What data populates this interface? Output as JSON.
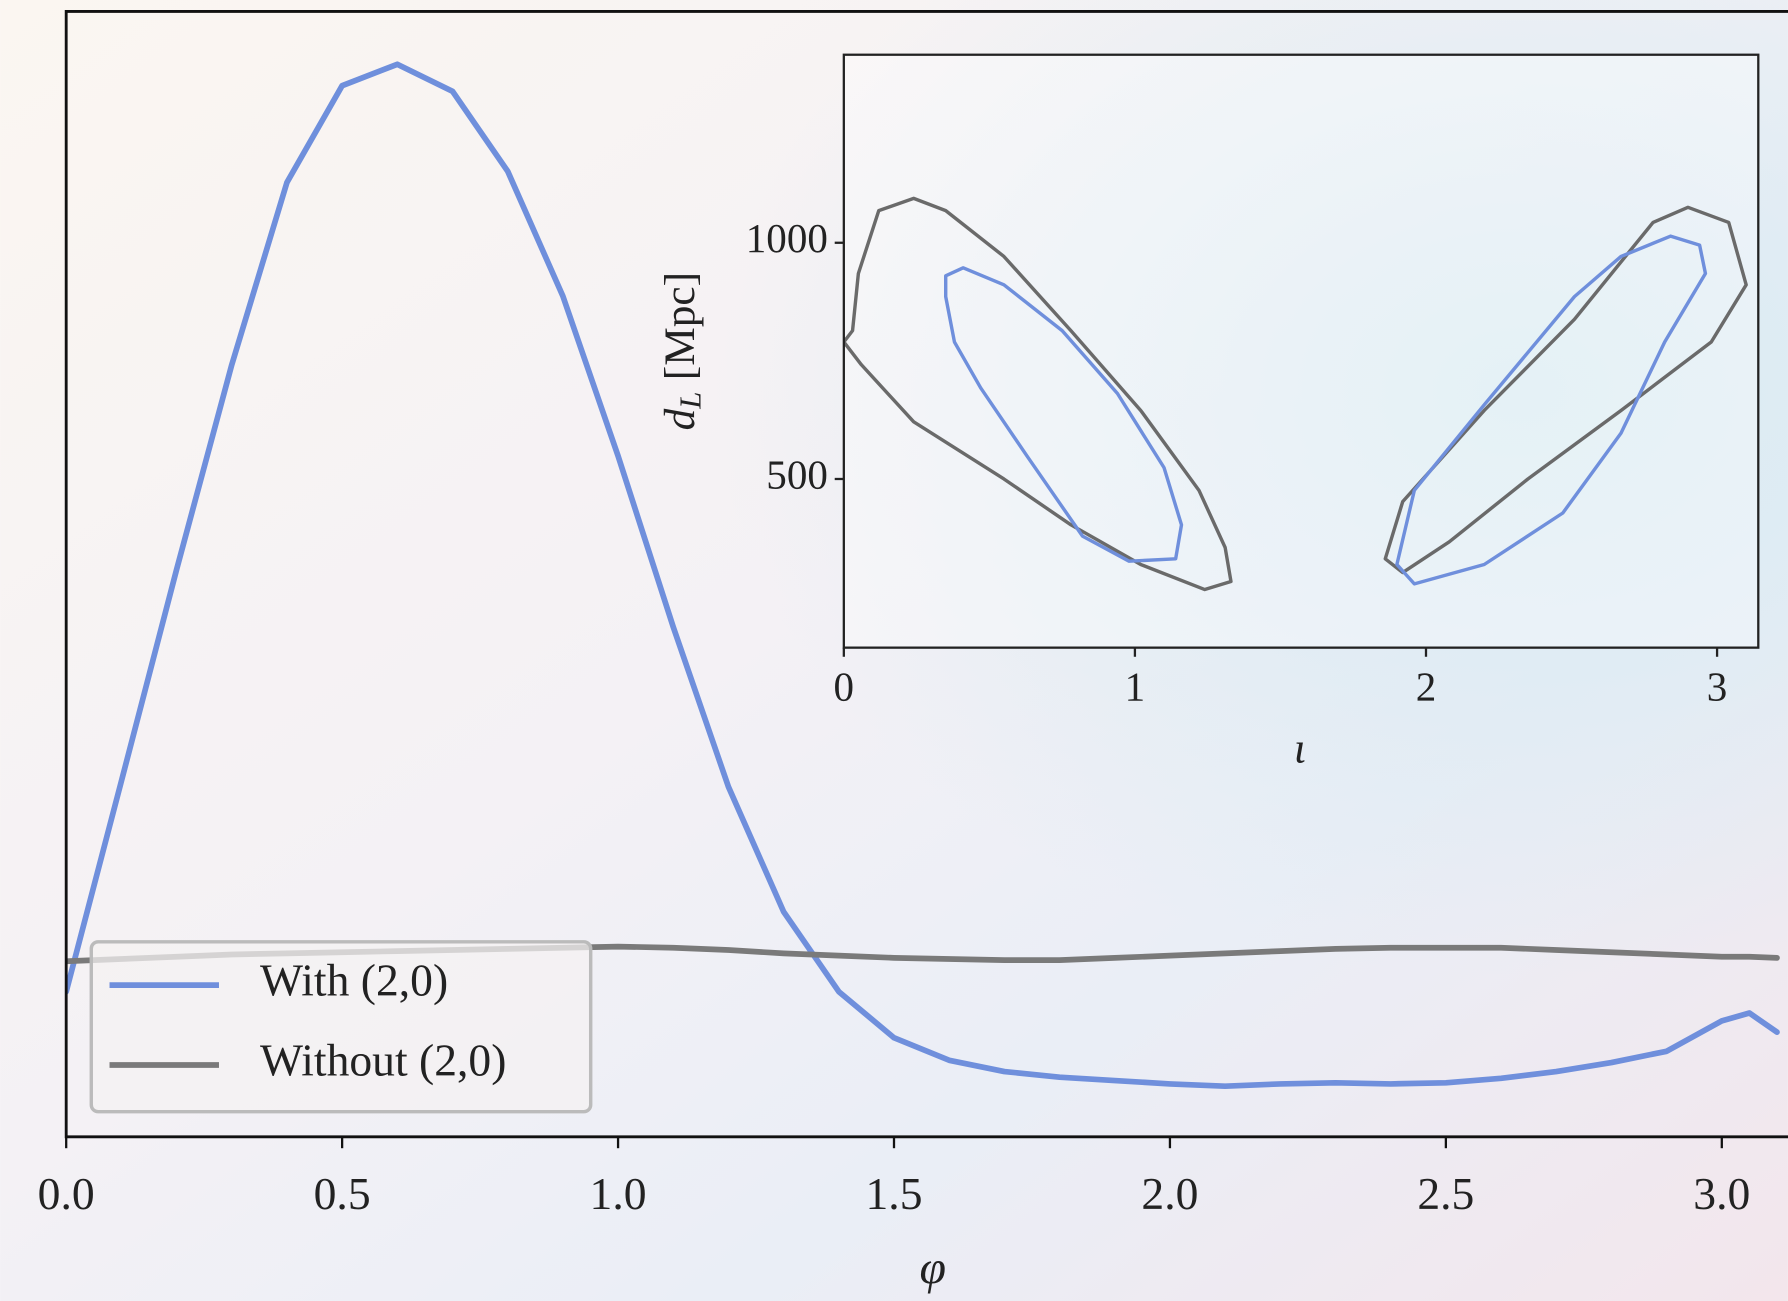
{
  "chart_data": [
    {
      "type": "line",
      "xlabel": "φ",
      "x": [
        0,
        0.1,
        0.2,
        0.3,
        0.4,
        0.5,
        0.6,
        0.7,
        0.8,
        0.9,
        1.0,
        1.1,
        1.2,
        1.3,
        1.4,
        1.5,
        1.6,
        1.7,
        1.8,
        1.9,
        2.0,
        2.1,
        2.2,
        2.3,
        2.4,
        2.5,
        2.6,
        2.7,
        2.8,
        2.9,
        3.0,
        3.05,
        3.1
      ],
      "series": [
        {
          "name": "With (2,0)",
          "color": "#6f8fdc",
          "values": [
            0.129,
            0.316,
            0.504,
            0.686,
            0.848,
            0.934,
            0.953,
            0.929,
            0.858,
            0.747,
            0.605,
            0.453,
            0.311,
            0.2,
            0.129,
            0.088,
            0.068,
            0.058,
            0.053,
            0.05,
            0.047,
            0.045,
            0.047,
            0.048,
            0.047,
            0.048,
            0.052,
            0.058,
            0.066,
            0.076,
            0.103,
            0.11,
            0.093
          ]
        },
        {
          "name": "Without (2,0)",
          "color": "#7a7a7a",
          "values": [
            0.156,
            0.158,
            0.16,
            0.162,
            0.163,
            0.164,
            0.165,
            0.166,
            0.167,
            0.168,
            0.169,
            0.168,
            0.166,
            0.163,
            0.161,
            0.159,
            0.158,
            0.157,
            0.157,
            0.159,
            0.161,
            0.163,
            0.165,
            0.167,
            0.168,
            0.168,
            0.168,
            0.166,
            0.164,
            0.162,
            0.16,
            0.16,
            0.159
          ]
        }
      ],
      "xlim": [
        0,
        3.14159
      ],
      "xticks": [
        {
          "value": 0,
          "label": "0.0"
        },
        0.5,
        {
          "value": 1,
          "label": "1.0"
        },
        1.5,
        {
          "value": 2,
          "label": "2.0"
        },
        2.5,
        {
          "value": 3,
          "label": "3.0"
        }
      ],
      "ylim": [
        0,
        1
      ],
      "legend": "lower left"
    },
    {
      "type": "contour",
      "xlabel": "ι",
      "ylabel": {
        "symbol": "d",
        "subscript": "L",
        "unit": "[Mpc]"
      },
      "series": [
        {
          "color": "#6a6a6a",
          "x": [
            0.03,
            0.05,
            0.12,
            0.24,
            0.35,
            0.55,
            0.78,
            1.02,
            1.22,
            1.31,
            1.33,
            1.24,
            1.02,
            0.78,
            0.55,
            0.24,
            0.06,
            0.0
          ],
          "y": [
            814,
            935,
            1068,
            1094,
            1068,
            971,
            814,
            645,
            476,
            355,
            283,
            266,
            319,
            403,
            500,
            621,
            742,
            790
          ]
        },
        {
          "color": "#6f8fdc",
          "x": [
            0.35,
            0.41,
            0.55,
            0.75,
            0.94,
            1.1,
            1.16,
            1.14,
            0.98,
            0.82,
            0.63,
            0.47,
            0.38,
            0.35
          ],
          "y": [
            930,
            947,
            911,
            814,
            681,
            524,
            403,
            331,
            326,
            379,
            548,
            693,
            790,
            886
          ]
        },
        {
          "color": "#6a6a6a",
          "x": [
            1.86,
            1.92,
            2.2,
            2.51,
            2.78,
            2.9,
            3.04,
            3.1,
            2.98,
            2.67,
            2.35,
            2.08,
            1.92
          ],
          "y": [
            331,
            452,
            645,
            838,
            1043,
            1075,
            1043,
            911,
            790,
            645,
            500,
            367,
            302
          ]
        },
        {
          "color": "#6f8fdc",
          "x": [
            1.9,
            1.96,
            2.2,
            2.51,
            2.67,
            2.84,
            2.94,
            2.96,
            2.82,
            2.67,
            2.47,
            2.2,
            1.96
          ],
          "y": [
            319,
            476,
            657,
            886,
            971,
            1014,
            995,
            935,
            790,
            597,
            428,
            319,
            278
          ]
        }
      ],
      "xlim": [
        0,
        3.14159
      ],
      "xticks": [
        0,
        1,
        2,
        3
      ],
      "ylim": [
        143,
        1398
      ],
      "yticks": [
        500,
        1000
      ]
    }
  ]
}
